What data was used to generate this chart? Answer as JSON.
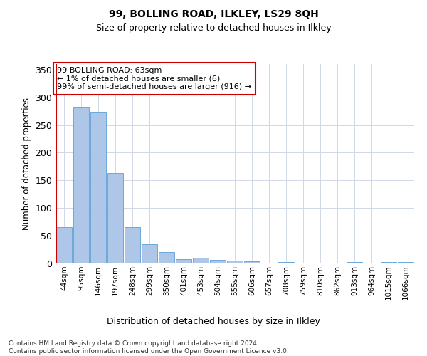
{
  "title1": "99, BOLLING ROAD, ILKLEY, LS29 8QH",
  "title2": "Size of property relative to detached houses in Ilkley",
  "xlabel": "Distribution of detached houses by size in Ilkley",
  "ylabel": "Number of detached properties",
  "categories": [
    "44sqm",
    "95sqm",
    "146sqm",
    "197sqm",
    "248sqm",
    "299sqm",
    "350sqm",
    "401sqm",
    "453sqm",
    "504sqm",
    "555sqm",
    "606sqm",
    "657sqm",
    "708sqm",
    "759sqm",
    "810sqm",
    "862sqm",
    "913sqm",
    "964sqm",
    "1015sqm",
    "1066sqm"
  ],
  "values": [
    65,
    283,
    273,
    163,
    65,
    35,
    20,
    8,
    10,
    6,
    5,
    4,
    0,
    3,
    0,
    0,
    0,
    3,
    0,
    3,
    3
  ],
  "bar_color": "#aec6e8",
  "bar_edge_color": "#5a9fd4",
  "highlight_color": "#cc0000",
  "annotation_text": "99 BOLLING ROAD: 63sqm\n← 1% of detached houses are smaller (6)\n99% of semi-detached houses are larger (916) →",
  "annotation_box_color": "#ffffff",
  "annotation_box_edge_color": "#cc0000",
  "ylim": [
    0,
    360
  ],
  "yticks": [
    0,
    50,
    100,
    150,
    200,
    250,
    300,
    350
  ],
  "footnote": "Contains HM Land Registry data © Crown copyright and database right 2024.\nContains public sector information licensed under the Open Government Licence v3.0.",
  "background_color": "#ffffff",
  "grid_color": "#d0d8e8"
}
